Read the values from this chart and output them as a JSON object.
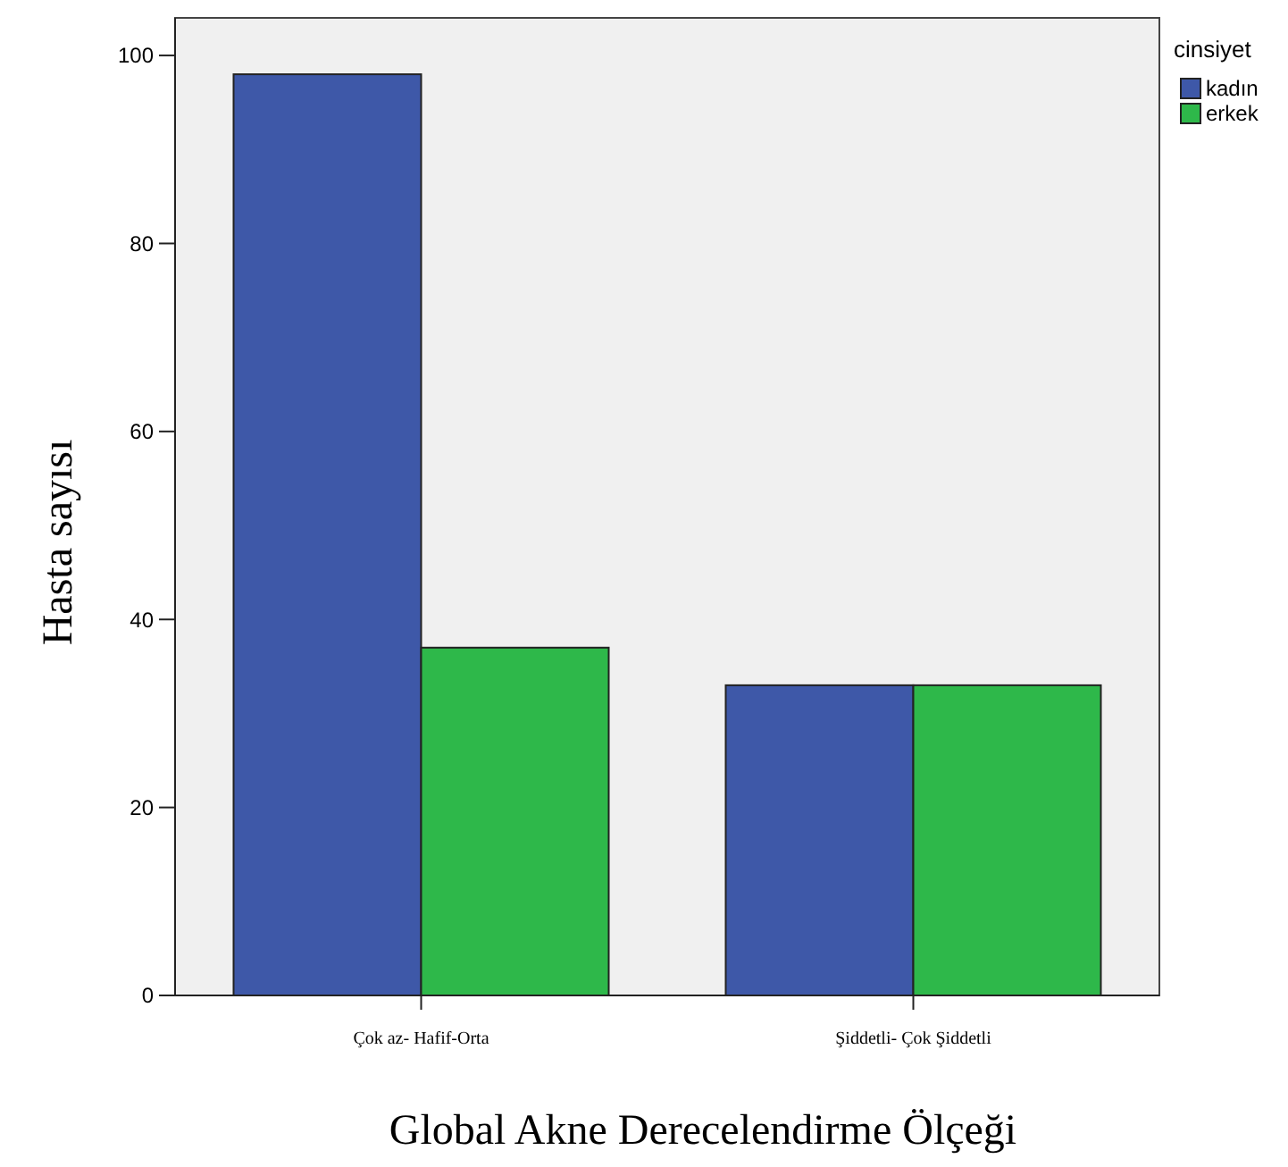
{
  "chart_data": {
    "type": "bar",
    "xlabel": "Global Akne Derecelendirme Ölçeği",
    "ylabel": "Hasta sayısı",
    "legend_title": "cinsiyet",
    "legend": "top right",
    "categories": [
      "Çok az- Hafif-Orta",
      "Şiddetli- Çok Şiddetli"
    ],
    "series": [
      {
        "name": "kadın",
        "color": "#3e58a8",
        "values": [
          98,
          33
        ]
      },
      {
        "name": "erkek",
        "color": "#2eb84a",
        "values": [
          37,
          33
        ]
      }
    ],
    "ylim": [
      0,
      104
    ],
    "yticks": [
      0,
      20,
      40,
      60,
      80,
      100
    ],
    "grid": false
  }
}
